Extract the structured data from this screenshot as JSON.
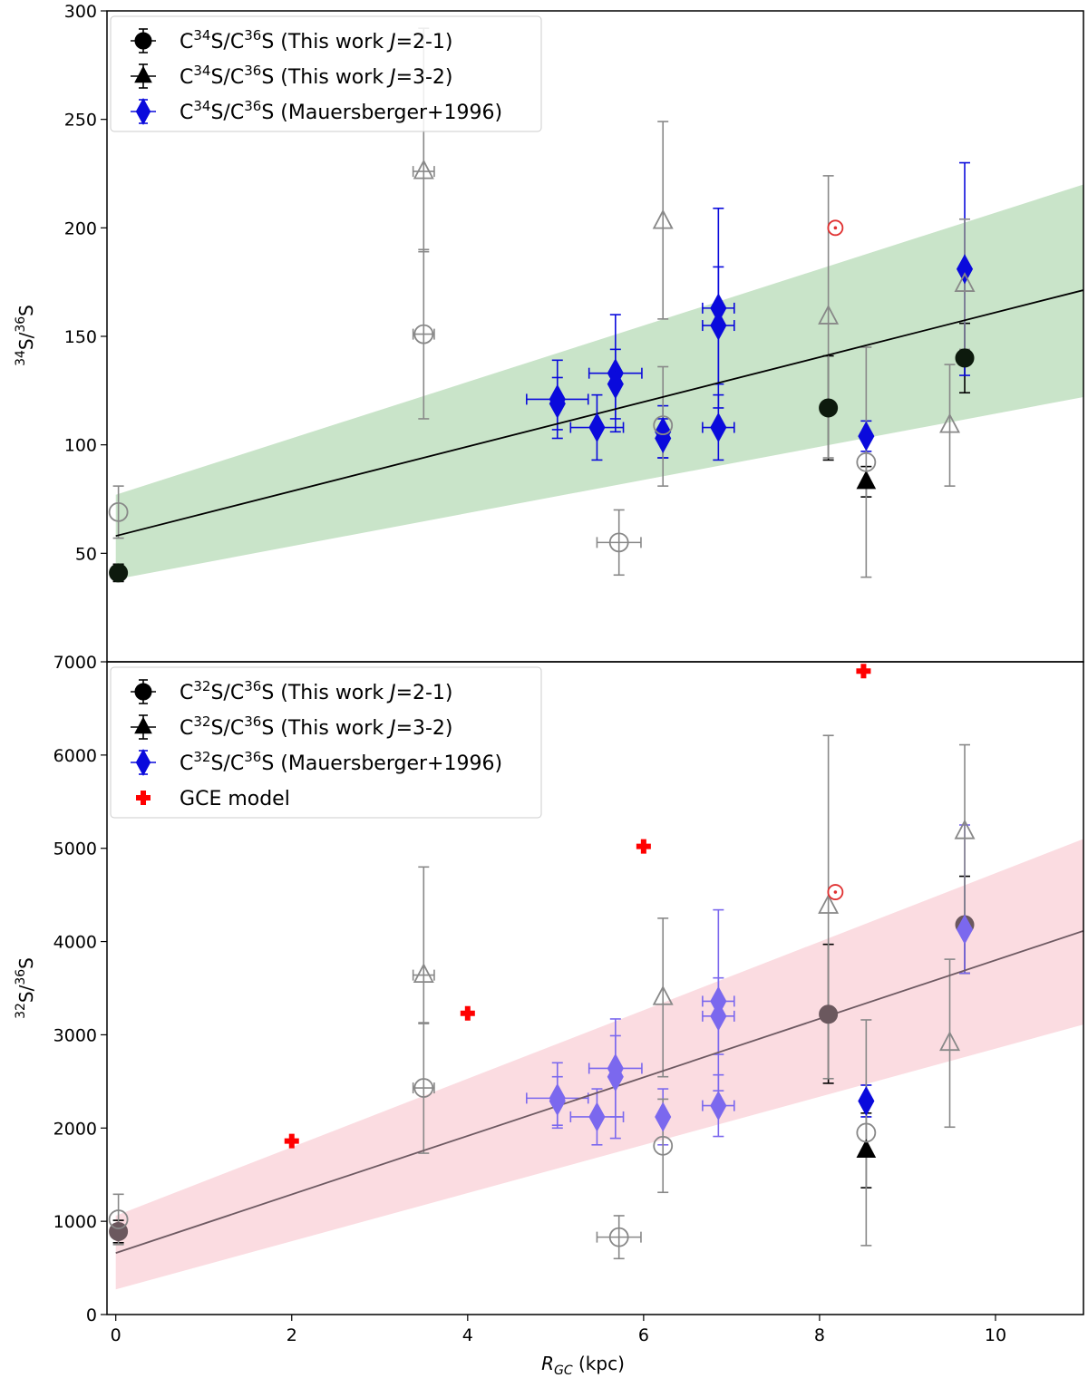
{
  "chart_data": [
    {
      "type": "scatter",
      "panel": "top",
      "ylabel": "34S/36S",
      "xlim": [
        -0.1,
        11.0
      ],
      "ylim": [
        0,
        300
      ],
      "yticks": [
        50,
        100,
        150,
        200,
        250,
        300
      ],
      "legend_position": "upper left",
      "legend": [
        {
          "label": "C34S/C36S (This work J=2-1)",
          "marker": "circle",
          "color": "#000000"
        },
        {
          "label": "C34S/C36S (This work J=3-2)",
          "marker": "triangle",
          "color": "#000000"
        },
        {
          "label": "C34S/C36S (Mauersberger+1996)",
          "marker": "diamond",
          "color": "#0a0adc"
        }
      ],
      "fit": {
        "intercept": 58,
        "slope": 10.3,
        "x_range": [
          0,
          11.0
        ],
        "color": "#000000"
      },
      "band": {
        "lower": [
          [
            0,
            38
          ],
          [
            11.0,
            122
          ]
        ],
        "upper": [
          [
            0,
            77
          ],
          [
            11.0,
            220
          ]
        ],
        "color": "#c9e4c9"
      },
      "series": [
        {
          "name": "This work J=2-1",
          "marker": "circle",
          "filled": true,
          "color": "#0d1a0d",
          "points": [
            {
              "x": 0.03,
              "y": 41,
              "yerr": [
                4,
                4
              ]
            },
            {
              "x": 8.1,
              "y": 117,
              "yerr": [
                24,
                24
              ]
            },
            {
              "x": 9.65,
              "y": 140,
              "yerr": [
                16,
                16
              ]
            }
          ]
        },
        {
          "name": "This work J=3-2",
          "marker": "triangle",
          "filled": true,
          "color": "#000000",
          "points": [
            {
              "x": 8.53,
              "y": 83,
              "yerr": [
                7,
                7
              ]
            }
          ]
        },
        {
          "name": "Mauersberger+1996",
          "marker": "diamond",
          "filled": true,
          "color": "#0a0adc",
          "points": [
            {
              "x": 5.02,
              "y": 121,
              "xerr": 0.35,
              "yerr": [
                18,
                18
              ]
            },
            {
              "x": 5.02,
              "y": 119,
              "yerr": [
                12,
                12
              ]
            },
            {
              "x": 5.47,
              "y": 108,
              "xerr": 0.3,
              "yerr": [
                15,
                15
              ]
            },
            {
              "x": 5.68,
              "y": 133,
              "xerr": 0.3,
              "yerr": [
                27,
                27
              ]
            },
            {
              "x": 5.68,
              "y": 128,
              "yerr": [
                16,
                16
              ]
            },
            {
              "x": 6.22,
              "y": 106,
              "yerr": [
                12,
                12
              ]
            },
            {
              "x": 6.22,
              "y": 103,
              "yerr": [
                9,
                9
              ]
            },
            {
              "x": 6.85,
              "y": 163,
              "xerr": 0.18,
              "yerr": [
                46,
                46
              ]
            },
            {
              "x": 6.85,
              "y": 155,
              "xerr": 0.18,
              "yerr": [
                27,
                27
              ]
            },
            {
              "x": 6.85,
              "y": 108,
              "xerr": 0.18,
              "yerr": [
                15,
                15
              ]
            },
            {
              "x": 8.53,
              "y": 104,
              "yerr": [
                7,
                7
              ]
            },
            {
              "x": 9.65,
              "y": 181,
              "yerr": [
                49,
                49
              ]
            }
          ]
        },
        {
          "name": "excluded circles",
          "marker": "circle",
          "filled": false,
          "color": "#888888",
          "points": [
            {
              "x": 0.03,
              "y": 69,
              "yerr": [
                12,
                12
              ]
            },
            {
              "x": 3.5,
              "y": 151,
              "xerr": 0.12,
              "yerr": [
                39,
                39
              ]
            },
            {
              "x": 5.72,
              "y": 55,
              "xerr": 0.25,
              "yerr": [
                15,
                15
              ]
            },
            {
              "x": 6.22,
              "y": 109,
              "yerr": [
                28,
                27
              ]
            },
            {
              "x": 8.53,
              "y": 92,
              "yerr": [
                53,
                53
              ]
            }
          ]
        },
        {
          "name": "excluded triangles",
          "marker": "triangle",
          "filled": false,
          "color": "#888888",
          "points": [
            {
              "x": 3.5,
              "y": 226,
              "xerr": 0.12,
              "yerr": [
                37,
                66
              ]
            },
            {
              "x": 6.22,
              "y": 203,
              "yerr": [
                45,
                46
              ]
            },
            {
              "x": 8.1,
              "y": 159,
              "yerr": [
                65,
                65
              ]
            },
            {
              "x": 9.48,
              "y": 109,
              "yerr": [
                28,
                28
              ]
            },
            {
              "x": 9.65,
              "y": 174,
              "yerr": [
                30,
                30
              ]
            }
          ]
        },
        {
          "name": "solar",
          "marker": "sun",
          "color": "#e03030",
          "points": [
            {
              "x": 8.18,
              "y": 200
            }
          ]
        }
      ]
    },
    {
      "type": "scatter",
      "panel": "bottom",
      "xlabel": "RGC (kpc)",
      "ylabel": "32S/36S",
      "xlim": [
        -0.1,
        11.0
      ],
      "ylim": [
        0,
        7000
      ],
      "xticks": [
        0,
        2,
        4,
        6,
        8,
        10
      ],
      "yticks": [
        0,
        1000,
        2000,
        3000,
        4000,
        5000,
        6000,
        7000
      ],
      "legend_position": "upper left",
      "legend": [
        {
          "label": "C32S/C36S (This work J=2-1)",
          "marker": "circle",
          "color": "#000000"
        },
        {
          "label": "C32S/C36S (This work J=3-2)",
          "marker": "triangle",
          "color": "#000000"
        },
        {
          "label": "C32S/C36S (Mauersberger+1996)",
          "marker": "diamond",
          "color": "#0a0adc"
        },
        {
          "label": "GCE model",
          "marker": "plus",
          "color": "#ff0000"
        }
      ],
      "fit": {
        "intercept": 660,
        "slope": 314,
        "x_range": [
          0,
          11.0
        ],
        "color": "#6e5a62"
      },
      "band": {
        "lower": [
          [
            0,
            270
          ],
          [
            11.0,
            3110
          ]
        ],
        "upper": [
          [
            0,
            1060
          ],
          [
            11.0,
            5100
          ]
        ],
        "color": "#fbdce1"
      },
      "series": [
        {
          "name": "This work J=2-1",
          "marker": "circle",
          "filled": true,
          "color": "#6b585e",
          "points": [
            {
              "x": 0.03,
              "y": 890,
              "yerr": [
                120,
                120
              ]
            },
            {
              "x": 8.1,
              "y": 3220,
              "yerr": [
                740,
                750
              ]
            },
            {
              "x": 9.65,
              "y": 4180,
              "yerr": [
                520,
                520
              ]
            }
          ]
        },
        {
          "name": "This work J=3-2",
          "marker": "triangle",
          "filled": true,
          "color": "#000000",
          "points": [
            {
              "x": 8.53,
              "y": 1760,
              "yerr": [
                400,
                400
              ]
            }
          ]
        },
        {
          "name": "Mauersberger+1996 (on band)",
          "marker": "diamond",
          "filled": true,
          "color": "#7b68ee",
          "points": [
            {
              "x": 5.02,
              "y": 2320,
              "xerr": 0.35,
              "yerr": [
                320,
                380
              ]
            },
            {
              "x": 5.02,
              "y": 2290,
              "yerr": [
                260,
                260
              ]
            },
            {
              "x": 5.47,
              "y": 2120,
              "xerr": 0.3,
              "yerr": [
                300,
                300
              ]
            },
            {
              "x": 5.68,
              "y": 2640,
              "xerr": 0.3,
              "yerr": [
                520,
                530
              ]
            },
            {
              "x": 5.68,
              "y": 2550,
              "yerr": [
                660,
                440
              ]
            },
            {
              "x": 6.22,
              "y": 2120,
              "yerr": [
                300,
                300
              ]
            },
            {
              "x": 6.85,
              "y": 3360,
              "xerr": 0.18,
              "yerr": [
                960,
                980
              ]
            },
            {
              "x": 6.85,
              "y": 3200,
              "xerr": 0.18,
              "yerr": [
                410,
                410
              ]
            },
            {
              "x": 6.85,
              "y": 2240,
              "xerr": 0.18,
              "yerr": [
                330,
                330
              ]
            },
            {
              "x": 9.65,
              "y": 4130,
              "yerr": [
                470,
                1120
              ]
            }
          ]
        },
        {
          "name": "Mauersberger+1996 (off band)",
          "marker": "diamond",
          "filled": true,
          "color": "#0a0adc",
          "points": [
            {
              "x": 8.53,
              "y": 2290,
              "yerr": [
                170,
                170
              ]
            }
          ]
        },
        {
          "name": "excluded circles",
          "marker": "circle",
          "filled": false,
          "color": "#888888",
          "points": [
            {
              "x": 0.03,
              "y": 1020,
              "yerr": [
                270,
                270
              ]
            },
            {
              "x": 3.5,
              "y": 2430,
              "xerr": 0.12,
              "yerr": [
                700,
                700
              ]
            },
            {
              "x": 5.72,
              "y": 830,
              "xerr": 0.25,
              "yerr": [
                230,
                230
              ]
            },
            {
              "x": 6.22,
              "y": 1810,
              "yerr": [
                500,
                500
              ]
            },
            {
              "x": 8.53,
              "y": 1950,
              "yerr": [
                1210,
                1210
              ]
            }
          ]
        },
        {
          "name": "excluded triangles",
          "marker": "triangle",
          "filled": false,
          "color": "#888888",
          "points": [
            {
              "x": 3.5,
              "y": 3640,
              "xerr": 0.12,
              "yerr": [
                520,
                1160
              ]
            },
            {
              "x": 6.22,
              "y": 3400,
              "yerr": [
                850,
                850
              ]
            },
            {
              "x": 8.1,
              "y": 4380,
              "yerr": [
                1850,
                1830
              ]
            },
            {
              "x": 9.48,
              "y": 2910,
              "yerr": [
                900,
                900
              ]
            },
            {
              "x": 9.65,
              "y": 5180,
              "yerr": [
                930,
                930
              ]
            }
          ]
        },
        {
          "name": "GCE model",
          "marker": "plus",
          "color": "#ff0000",
          "points": [
            {
              "x": 2,
              "y": 1860
            },
            {
              "x": 4,
              "y": 3230
            },
            {
              "x": 6,
              "y": 5020
            },
            {
              "x": 8.5,
              "y": 6900
            }
          ]
        },
        {
          "name": "solar",
          "marker": "sun",
          "color": "#e03030",
          "points": [
            {
              "x": 8.18,
              "y": 4530
            }
          ]
        }
      ]
    }
  ]
}
